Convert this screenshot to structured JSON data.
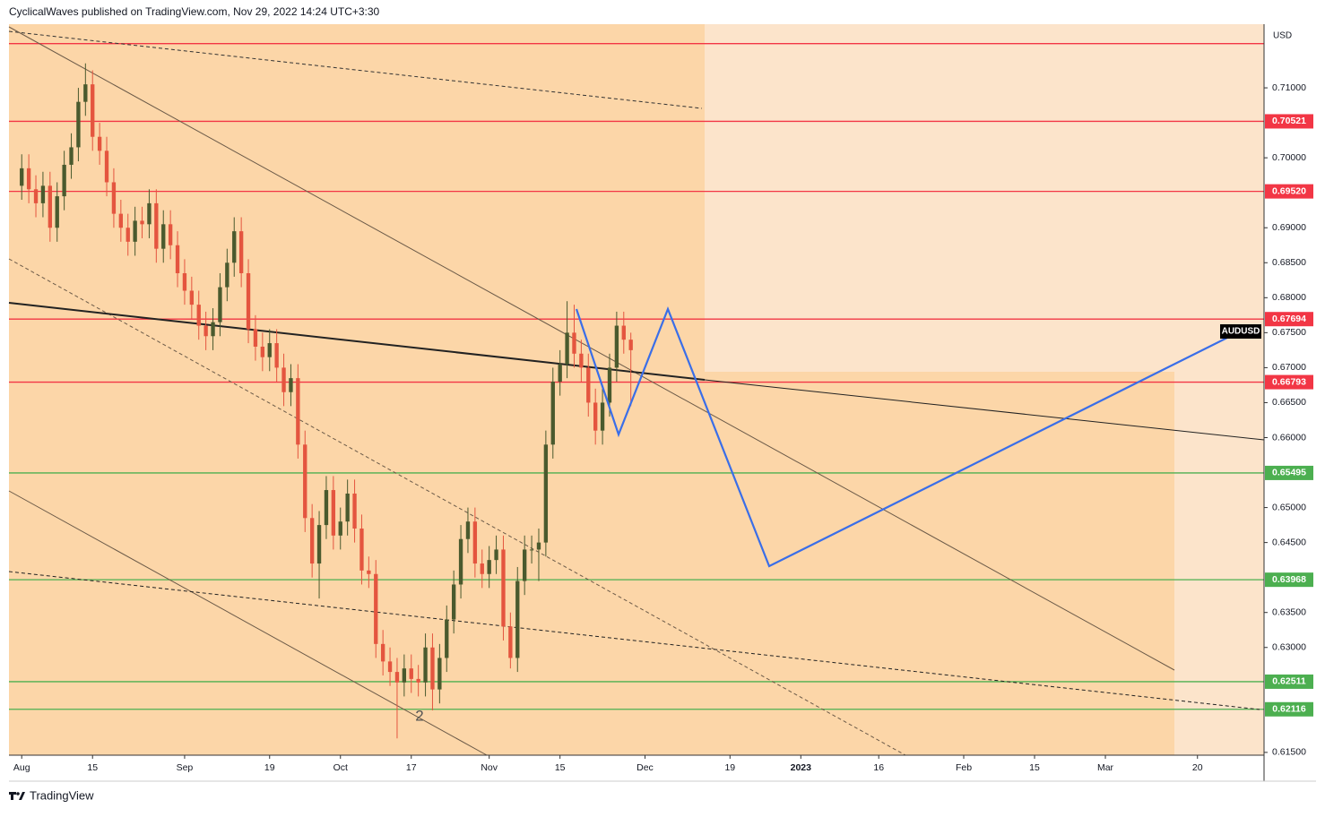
{
  "header": {
    "text": "CyclicalWaves published on TradingView.com, Nov 29, 2022 14:24 UTC+3:30"
  },
  "chart_data": {
    "type": "candlestick",
    "symbol": "AUDUSD",
    "currency": "USD",
    "annotation": "2",
    "up_color": "#4a5a2e",
    "down_color": "#e4553f",
    "open": [
      0.696,
      0.6985,
      0.6955,
      0.6935,
      0.696,
      0.69,
      0.6945,
      0.699,
      0.7015,
      0.708,
      0.7105,
      0.703,
      0.701,
      0.6965,
      0.692,
      0.69,
      0.688,
      0.691,
      0.6905,
      0.6935,
      0.687,
      0.6905,
      0.6875,
      0.6835,
      0.681,
      0.679,
      0.676,
      0.6745,
      0.6765,
      0.6815,
      0.685,
      0.6895,
      0.6835,
      0.6755,
      0.673,
      0.6715,
      0.6735,
      0.67,
      0.6665,
      0.6685,
      0.659,
      0.6485,
      0.642,
      0.6475,
      0.6525,
      0.646,
      0.648,
      0.652,
      0.647,
      0.641,
      0.6405,
      0.6305,
      0.628,
      0.6265,
      0.625,
      0.627,
      0.6255,
      0.625,
      0.63,
      0.624,
      0.6285,
      0.634,
      0.639,
      0.6455,
      0.648,
      0.642,
      0.6405,
      0.6425,
      0.644,
      0.633,
      0.6285,
      0.6395,
      0.644,
      0.644,
      0.645,
      0.659,
      0.668,
      0.6705,
      0.675,
      0.672,
      0.67,
      0.665,
      0.661,
      0.665,
      0.67,
      0.676,
      0.674
    ],
    "high": [
      0.7005,
      0.7005,
      0.6975,
      0.698,
      0.698,
      0.6965,
      0.701,
      0.7035,
      0.71,
      0.7135,
      0.7125,
      0.705,
      0.703,
      0.6985,
      0.694,
      0.692,
      0.693,
      0.693,
      0.6955,
      0.6955,
      0.6925,
      0.6925,
      0.6895,
      0.6855,
      0.683,
      0.681,
      0.678,
      0.6785,
      0.6835,
      0.687,
      0.6915,
      0.6915,
      0.6855,
      0.6775,
      0.675,
      0.6755,
      0.6755,
      0.672,
      0.6705,
      0.6705,
      0.661,
      0.6505,
      0.6495,
      0.6545,
      0.6545,
      0.65,
      0.654,
      0.654,
      0.649,
      0.643,
      0.6425,
      0.6325,
      0.63,
      0.6285,
      0.629,
      0.629,
      0.6275,
      0.632,
      0.632,
      0.6305,
      0.636,
      0.641,
      0.6475,
      0.65,
      0.65,
      0.644,
      0.6445,
      0.646,
      0.646,
      0.635,
      0.6415,
      0.646,
      0.646,
      0.647,
      0.661,
      0.67,
      0.6725,
      0.6795,
      0.679,
      0.674,
      0.672,
      0.667,
      0.667,
      0.672,
      0.678,
      0.678,
      0.675
    ],
    "low": [
      0.694,
      0.6935,
      0.6915,
      0.6915,
      0.688,
      0.688,
      0.6925,
      0.697,
      0.6995,
      0.706,
      0.701,
      0.699,
      0.6945,
      0.69,
      0.688,
      0.686,
      0.686,
      0.6885,
      0.6885,
      0.685,
      0.685,
      0.6855,
      0.6815,
      0.679,
      0.677,
      0.674,
      0.6725,
      0.6725,
      0.6745,
      0.6795,
      0.683,
      0.6815,
      0.6735,
      0.671,
      0.6695,
      0.6695,
      0.668,
      0.6645,
      0.6645,
      0.657,
      0.6465,
      0.64,
      0.637,
      0.6455,
      0.644,
      0.644,
      0.646,
      0.645,
      0.639,
      0.6385,
      0.6285,
      0.626,
      0.6245,
      0.617,
      0.623,
      0.6235,
      0.623,
      0.623,
      0.621,
      0.622,
      0.6265,
      0.632,
      0.637,
      0.6435,
      0.64,
      0.6385,
      0.6385,
      0.6405,
      0.631,
      0.627,
      0.6265,
      0.6375,
      0.642,
      0.6395,
      0.643,
      0.657,
      0.666,
      0.6685,
      0.67,
      0.668,
      0.663,
      0.659,
      0.659,
      0.663,
      0.668,
      0.672,
      0.6645
    ],
    "close": [
      0.6985,
      0.6955,
      0.6935,
      0.696,
      0.69,
      0.6945,
      0.699,
      0.7015,
      0.708,
      0.7105,
      0.703,
      0.701,
      0.6965,
      0.692,
      0.69,
      0.688,
      0.691,
      0.6905,
      0.6935,
      0.687,
      0.6905,
      0.6875,
      0.6835,
      0.681,
      0.679,
      0.676,
      0.6745,
      0.6765,
      0.6815,
      0.685,
      0.6895,
      0.6835,
      0.6755,
      0.673,
      0.6715,
      0.6735,
      0.67,
      0.6665,
      0.6685,
      0.659,
      0.6485,
      0.642,
      0.6475,
      0.6525,
      0.646,
      0.648,
      0.652,
      0.647,
      0.641,
      0.6405,
      0.6305,
      0.628,
      0.6265,
      0.625,
      0.627,
      0.6255,
      0.625,
      0.63,
      0.624,
      0.6285,
      0.634,
      0.639,
      0.6455,
      0.648,
      0.642,
      0.6405,
      0.6425,
      0.644,
      0.633,
      0.6285,
      0.6395,
      0.644,
      0.644,
      0.645,
      0.659,
      0.668,
      0.6705,
      0.675,
      0.672,
      0.67,
      0.665,
      0.661,
      0.665,
      0.67,
      0.676,
      0.674,
      0.6725
    ],
    "ylim": [
      0.6146,
      0.7191
    ],
    "yticks": [
      {
        "value": 0.71,
        "label": "0.71000"
      },
      {
        "value": 0.7,
        "label": "0.70000"
      },
      {
        "value": 0.69,
        "label": "0.69000"
      },
      {
        "value": 0.685,
        "label": "0.68500"
      },
      {
        "value": 0.68,
        "label": "0.68000"
      },
      {
        "value": 0.675,
        "label": "0.67500"
      },
      {
        "value": 0.67,
        "label": "0.67000"
      },
      {
        "value": 0.665,
        "label": "0.66500"
      },
      {
        "value": 0.66,
        "label": "0.66000"
      },
      {
        "value": 0.65,
        "label": "0.65000"
      },
      {
        "value": 0.645,
        "label": "0.64500"
      },
      {
        "value": 0.635,
        "label": "0.63500"
      },
      {
        "value": 0.63,
        "label": "0.63000"
      },
      {
        "value": 0.615,
        "label": "0.61500"
      }
    ],
    "xlim": [
      -1.8,
      175.4
    ],
    "xticks": [
      {
        "value": 0,
        "label": "Aug"
      },
      {
        "value": 10,
        "label": "15"
      },
      {
        "value": 23,
        "label": "Sep"
      },
      {
        "value": 35,
        "label": "19"
      },
      {
        "value": 45,
        "label": "Oct"
      },
      {
        "value": 55,
        "label": "17"
      },
      {
        "value": 66,
        "label": "Nov"
      },
      {
        "value": 76,
        "label": "15"
      },
      {
        "value": 88,
        "label": "Dec"
      },
      {
        "value": 100,
        "label": "19"
      },
      {
        "value": 110,
        "label": "2023"
      },
      {
        "value": 121,
        "label": "16"
      },
      {
        "value": 133,
        "label": "Feb"
      },
      {
        "value": 143,
        "label": "15"
      },
      {
        "value": 153,
        "label": "Mar"
      },
      {
        "value": 166,
        "label": "20"
      }
    ],
    "levels": [
      {
        "value": 0.71632,
        "color": "#f23645"
      },
      {
        "value": 0.70521,
        "label": "0.70521",
        "color": "#f23645"
      },
      {
        "value": 0.6952,
        "label": "0.69520",
        "color": "#f23645"
      },
      {
        "value": 0.67694,
        "label": "0.67694",
        "color": "#f23645"
      },
      {
        "value": 0.66793,
        "label": "0.66793",
        "color": "#f23645"
      },
      {
        "value": 0.65495,
        "label": "0.65495",
        "color": "#4caf50"
      },
      {
        "value": 0.63968,
        "label": "0.63968",
        "color": "#4caf50"
      },
      {
        "value": 0.62511,
        "label": "0.62511",
        "color": "#4caf50"
      },
      {
        "value": 0.62116,
        "label": "0.62116",
        "color": "#4caf50"
      }
    ]
  },
  "footer": {
    "brand": "TradingView"
  }
}
